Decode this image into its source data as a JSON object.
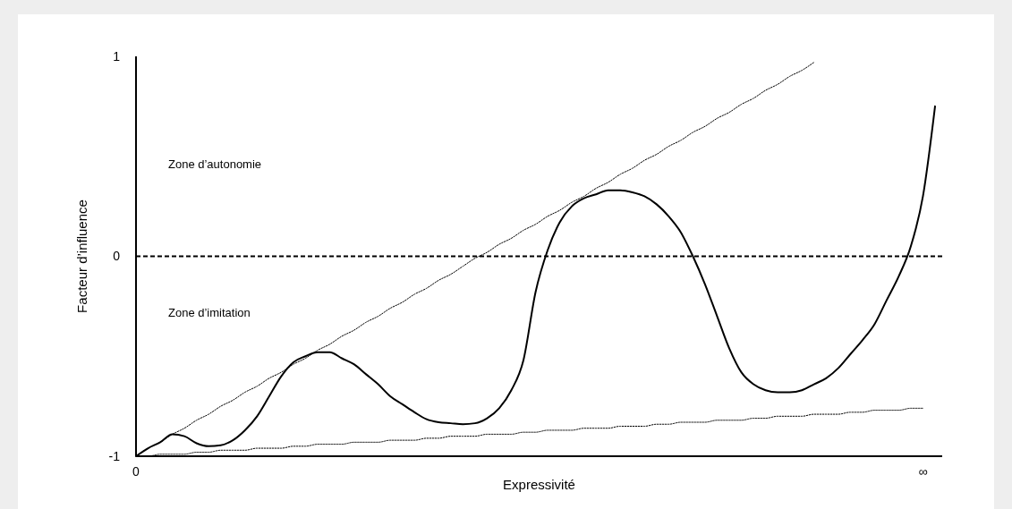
{
  "chart_data": {
    "type": "line",
    "xlabel": "Expressivité",
    "ylabel": "Facteur d’influence",
    "categories": [
      "0",
      null,
      null,
      null,
      null,
      null,
      null,
      null,
      null,
      null,
      null,
      null,
      null,
      null,
      null,
      null,
      null,
      null,
      null,
      null,
      null,
      null,
      null,
      null,
      null,
      null,
      null,
      null,
      null,
      null,
      null,
      null,
      null,
      null,
      null,
      null,
      null,
      null,
      null,
      null,
      null,
      null,
      null,
      null,
      null,
      null,
      null,
      null,
      null,
      null,
      null,
      null,
      null,
      null,
      null,
      null,
      null,
      null,
      null,
      null,
      null,
      null,
      null,
      null,
      null,
      "∞",
      null
    ],
    "ylim": [
      -1,
      1
    ],
    "yticks": [
      -1,
      0,
      1
    ],
    "grid": false,
    "series": [
      {
        "color": "#000000",
        "line_style": "solid",
        "values": [
          -1,
          -0.96,
          -0.93,
          -0.89,
          -0.9,
          -0.935,
          -0.95,
          -0.945,
          -0.92,
          -0.87,
          -0.8,
          -0.7,
          -0.6,
          -0.53,
          -0.5,
          -0.48,
          -0.48,
          -0.51,
          -0.54,
          -0.59,
          -0.64,
          -0.7,
          -0.74,
          -0.78,
          -0.815,
          -0.83,
          -0.835,
          -0.84,
          -0.835,
          -0.81,
          -0.76,
          -0.67,
          -0.52,
          -0.18,
          0.03,
          0.17,
          0.25,
          0.29,
          0.31,
          0.33,
          0.33,
          0.32,
          0.3,
          0.26,
          0.2,
          0.12,
          0,
          -0.14,
          -0.3,
          -0.46,
          -0.58,
          -0.64,
          -0.67,
          -0.68,
          -0.68,
          -0.67,
          -0.64,
          -0.61,
          -0.56,
          -0.49,
          -0.42,
          -0.34,
          -0.22,
          -0.1,
          0.05,
          0.3,
          0.75
        ]
      },
      {
        "color": "#000000",
        "line_style": "dotted",
        "values": [
          -1,
          -0.96,
          -0.93,
          -0.89,
          -0.86,
          -0.82,
          -0.79,
          -0.75,
          -0.72,
          -0.68,
          -0.65,
          -0.61,
          -0.58,
          -0.54,
          -0.51,
          -0.47,
          -0.44,
          -0.4,
          -0.37,
          -0.33,
          -0.3,
          -0.26,
          -0.23,
          -0.19,
          -0.16,
          -0.12,
          -0.09,
          -0.05,
          -0.01,
          0.02,
          0.06,
          0.09,
          0.13,
          0.16,
          0.2,
          0.23,
          0.27,
          0.3,
          0.34,
          0.37,
          0.41,
          0.44,
          0.48,
          0.51,
          0.55,
          0.58,
          0.62,
          0.65,
          0.69,
          0.72,
          0.76,
          0.79,
          0.83,
          0.86,
          0.9,
          0.93,
          0.97,
          null,
          null,
          null,
          null,
          null,
          null,
          null,
          null,
          null,
          null
        ]
      },
      {
        "color": "#000000",
        "line_style": "dotted",
        "values": [
          -1,
          -1,
          -0.99,
          -0.99,
          -0.99,
          -0.98,
          -0.98,
          -0.97,
          -0.97,
          -0.97,
          -0.96,
          -0.96,
          -0.96,
          -0.95,
          -0.95,
          -0.94,
          -0.94,
          -0.94,
          -0.93,
          -0.93,
          -0.93,
          -0.92,
          -0.92,
          -0.92,
          -0.91,
          -0.91,
          -0.9,
          -0.9,
          -0.9,
          -0.89,
          -0.89,
          -0.89,
          -0.88,
          -0.88,
          -0.87,
          -0.87,
          -0.87,
          -0.86,
          -0.86,
          -0.86,
          -0.85,
          -0.85,
          -0.85,
          -0.84,
          -0.84,
          -0.83,
          -0.83,
          -0.83,
          -0.82,
          -0.82,
          -0.82,
          -0.81,
          -0.81,
          -0.8,
          -0.8,
          -0.8,
          -0.79,
          -0.79,
          -0.79,
          -0.78,
          -0.78,
          -0.77,
          -0.77,
          -0.77,
          -0.76,
          -0.76,
          null
        ]
      }
    ],
    "ref_lines": [
      {
        "axis": "y",
        "value": 0,
        "line_style": "dashed",
        "color": "#000000"
      }
    ],
    "annotations": [
      "Zone d’autonomie",
      "Zone d’imitation"
    ]
  }
}
